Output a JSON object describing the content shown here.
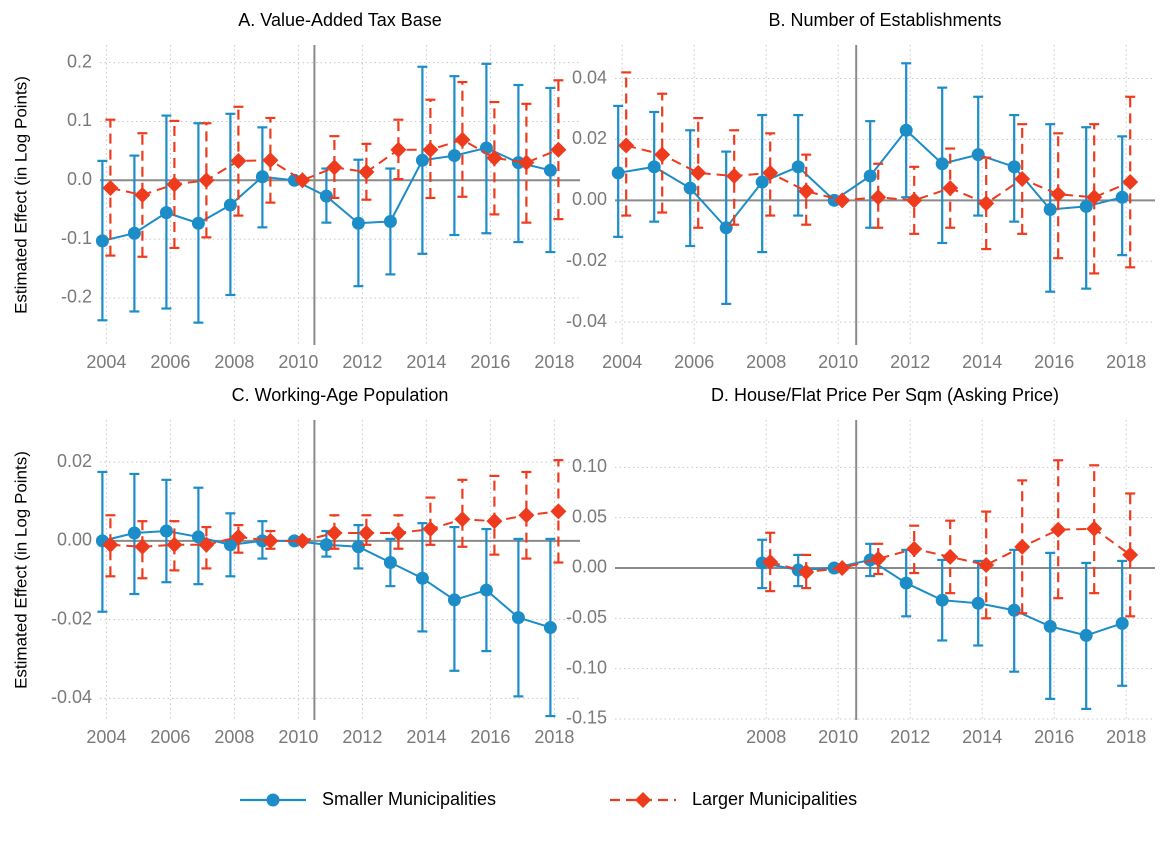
{
  "chart_data": [
    {
      "type": "line",
      "title": "A. Value-Added Tax Base",
      "ylabel": "Estimated Effect (in Log Points)",
      "x": [
        2004,
        2005,
        2006,
        2007,
        2008,
        2009,
        2010,
        2011,
        2012,
        2013,
        2014,
        2015,
        2016,
        2017,
        2018
      ],
      "series": [
        {
          "values": [
            -0.103,
            -0.09,
            -0.055,
            -0.073,
            -0.042,
            0.006,
            0,
            -0.027,
            -0.073,
            -0.07,
            0.034,
            0.042,
            0.055,
            0.03,
            0.017
          ],
          "lower": [
            -0.238,
            -0.223,
            -0.218,
            -0.242,
            -0.195,
            -0.08,
            0,
            -0.072,
            -0.18,
            -0.16,
            -0.125,
            -0.093,
            -0.09,
            -0.105,
            -0.122
          ],
          "upper": [
            0.033,
            0.042,
            0.11,
            0.097,
            0.113,
            0.09,
            0,
            0.02,
            0.035,
            0.02,
            0.193,
            0.177,
            0.198,
            0.162,
            0.157
          ]
        },
        {
          "values": [
            -0.013,
            -0.025,
            -0.007,
            0,
            0.033,
            0.034,
            0,
            0.022,
            0.014,
            0.052,
            0.052,
            0.069,
            0.038,
            0.03,
            0.052
          ],
          "lower": [
            -0.128,
            -0.13,
            -0.115,
            -0.097,
            -0.06,
            -0.038,
            0,
            -0.03,
            -0.033,
            0.002,
            -0.03,
            -0.028,
            -0.058,
            -0.072,
            -0.066
          ],
          "upper": [
            0.103,
            0.08,
            0.101,
            0.097,
            0.125,
            0.106,
            0,
            0.075,
            0.062,
            0.103,
            0.137,
            0.167,
            0.133,
            0.13,
            0.17
          ]
        }
      ],
      "xlim": [
        2003.8,
        2018.8
      ],
      "xticks": [
        2004,
        2006,
        2008,
        2010,
        2012,
        2014,
        2016,
        2018
      ],
      "ylim": [
        -0.28,
        0.23
      ],
      "yticks": [
        -0.2,
        -0.1,
        {
          "value": 0,
          "label": "0.0"
        },
        0.1,
        0.2
      ],
      "vline": 2010.5,
      "grid": true
    },
    {
      "type": "line",
      "title": "B. Number of Establishments",
      "x": [
        2004,
        2005,
        2006,
        2007,
        2008,
        2009,
        2010,
        2011,
        2012,
        2013,
        2014,
        2015,
        2016,
        2017,
        2018
      ],
      "series": [
        {
          "values": [
            0.009,
            0.011,
            0.004,
            -0.009,
            0.006,
            0.011,
            0,
            0.008,
            0.023,
            0.012,
            0.015,
            0.011,
            -0.003,
            -0.002,
            0.001
          ],
          "lower": [
            -0.012,
            -0.007,
            -0.015,
            -0.034,
            -0.017,
            -0.005,
            0,
            -0.009,
            0.001,
            -0.014,
            -0.005,
            -0.007,
            -0.03,
            -0.029,
            -0.018
          ],
          "upper": [
            0.031,
            0.029,
            0.023,
            0.016,
            0.028,
            0.028,
            0,
            0.026,
            0.045,
            0.037,
            0.034,
            0.028,
            0.025,
            0.024,
            0.021
          ]
        },
        {
          "values": [
            0.018,
            0.015,
            0.009,
            0.008,
            0.009,
            0.003,
            0,
            0.001,
            0,
            0.004,
            -0.001,
            0.007,
            0.002,
            0.001,
            0.006
          ],
          "lower": [
            -0.005,
            -0.004,
            -0.009,
            -0.008,
            -0.005,
            -0.008,
            0,
            -0.009,
            -0.011,
            -0.009,
            -0.016,
            -0.011,
            -0.019,
            -0.024,
            -0.022
          ],
          "upper": [
            0.042,
            0.035,
            0.027,
            0.023,
            0.022,
            0.015,
            0,
            0.012,
            0.011,
            0.017,
            0.014,
            0.025,
            0.022,
            0.025,
            0.034
          ]
        }
      ],
      "xlim": [
        2003.8,
        2018.8
      ],
      "xticks": [
        2004,
        2006,
        2008,
        2010,
        2012,
        2014,
        2016,
        2018
      ],
      "ylim": [
        -0.0475,
        0.051
      ],
      "yticks": [
        -0.04,
        -0.02,
        {
          "value": 0,
          "label": "0.00"
        },
        0.02,
        0.04
      ],
      "vline": 2010.5,
      "grid": true
    },
    {
      "type": "line",
      "title": "C. Working-Age Population",
      "ylabel": "Estimated Effect (in Log Points)",
      "x": [
        2004,
        2005,
        2006,
        2007,
        2008,
        2009,
        2010,
        2011,
        2012,
        2013,
        2014,
        2015,
        2016,
        2017,
        2018
      ],
      "series": [
        {
          "values": [
            0,
            0.002,
            0.0025,
            0.001,
            -0.001,
            0,
            0,
            -0.001,
            -0.0015,
            -0.0055,
            -0.0095,
            -0.015,
            -0.0125,
            -0.0195,
            -0.022
          ],
          "lower": [
            -0.018,
            -0.0135,
            -0.0105,
            -0.011,
            -0.009,
            -0.0045,
            0,
            -0.004,
            -0.007,
            -0.0115,
            -0.023,
            -0.033,
            -0.028,
            -0.0395,
            -0.0445
          ],
          "upper": [
            0.0175,
            0.017,
            0.0155,
            0.0135,
            0.007,
            0.005,
            0,
            0.0025,
            0.004,
            0.0005,
            0.0045,
            0.0035,
            0.003,
            0.0005,
            0.0005
          ]
        },
        {
          "values": [
            -0.001,
            -0.0015,
            -0.001,
            -0.001,
            0.001,
            0,
            0,
            0.002,
            0.002,
            0.002,
            0.003,
            0.0055,
            0.005,
            0.0065,
            0.0075
          ],
          "lower": [
            -0.009,
            -0.0095,
            -0.0075,
            -0.007,
            -0.003,
            -0.002,
            0,
            -0.002,
            -0.001,
            -0.002,
            -0.001,
            -0.0015,
            -0.0035,
            -0.0045,
            -0.0055
          ],
          "upper": [
            0.0065,
            0.005,
            0.005,
            0.0035,
            0.004,
            0.0025,
            0,
            0.0065,
            0.0065,
            0.0065,
            0.011,
            0.0155,
            0.0165,
            0.0175,
            0.0205
          ]
        }
      ],
      "xlim": [
        2003.8,
        2018.8
      ],
      "xticks": [
        2004,
        2006,
        2008,
        2010,
        2012,
        2014,
        2016,
        2018
      ],
      "ylim": [
        -0.0455,
        0.0307
      ],
      "yticks": [
        -0.04,
        -0.02,
        {
          "value": 0,
          "label": "0.00"
        },
        0.02
      ],
      "vline": 2010.5,
      "grid": true
    },
    {
      "type": "line",
      "title": "D. House/Flat Price Per Sqm (Asking Price)",
      "x": [
        2008,
        2009,
        2010,
        2011,
        2012,
        2013,
        2014,
        2015,
        2016,
        2017,
        2018
      ],
      "series": [
        {
          "values": [
            0.005,
            -0.002,
            0,
            0.008,
            -0.015,
            -0.032,
            -0.035,
            -0.042,
            -0.058,
            -0.067,
            -0.055
          ],
          "lower": [
            -0.02,
            -0.018,
            0,
            -0.008,
            -0.048,
            -0.072,
            -0.077,
            -0.103,
            -0.13,
            -0.14,
            -0.117
          ],
          "upper": [
            0.028,
            0.013,
            0,
            0.024,
            0.018,
            0.008,
            0.007,
            0.018,
            0.015,
            0.005,
            0.007
          ]
        },
        {
          "values": [
            0.006,
            -0.004,
            0,
            0.009,
            0.019,
            0.011,
            0.003,
            0.021,
            0.038,
            0.039,
            0.013
          ],
          "lower": [
            -0.023,
            -0.02,
            0,
            -0.006,
            -0.005,
            -0.025,
            -0.05,
            -0.045,
            -0.03,
            -0.025,
            -0.048
          ],
          "upper": [
            0.035,
            0.013,
            0,
            0.024,
            0.042,
            0.047,
            0.056,
            0.087,
            0.107,
            0.102,
            0.074
          ]
        }
      ],
      "xlim": [
        2003.8,
        2018.8
      ],
      "xticks": [
        2008,
        2010,
        2012,
        2014,
        2016,
        2018
      ],
      "ylim": [
        -0.151,
        0.147
      ],
      "yticks": [
        -0.15,
        {
          "value": -0.1,
          "label": "-0.10"
        },
        -0.05,
        {
          "value": 0,
          "label": "0.00"
        },
        0.05,
        {
          "value": 0.1,
          "label": "0.10"
        }
      ],
      "vline": 2010.5,
      "grid": true
    }
  ],
  "legend": {
    "series": [
      {
        "name": "Smaller Municipalities",
        "color": "#1c8dc7",
        "marker": "circle",
        "dashed": false
      },
      {
        "name": "Larger Municipalities",
        "color": "#ee3b1d",
        "marker": "diamond",
        "dashed": true
      }
    ]
  }
}
